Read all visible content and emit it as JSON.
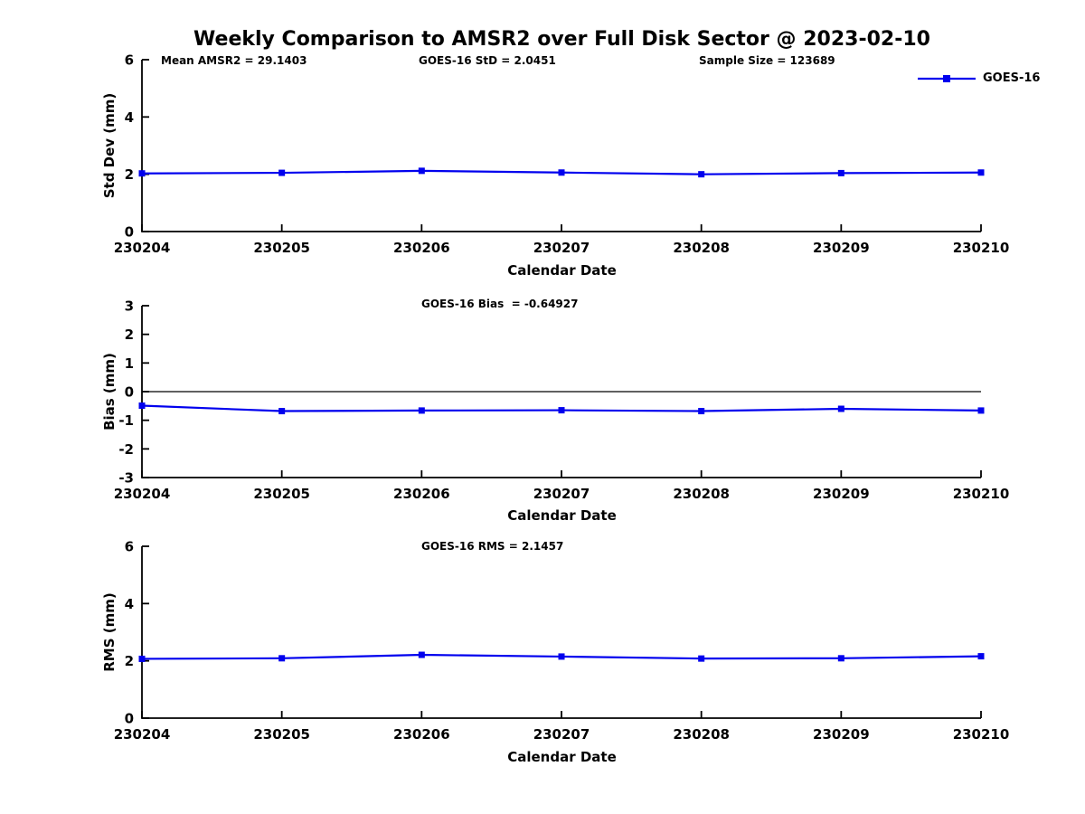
{
  "figure": {
    "title": "Weekly Comparison to AMSR2 over Full Disk Sector @ 2023-02-10",
    "line_color": "#0000EE",
    "axis_color": "#000000",
    "legend": {
      "label": "GOES-16"
    }
  },
  "chart_data": [
    {
      "type": "line",
      "name": "std-dev",
      "ylabel": "Std Dev (mm)",
      "xlabel": "Calendar Date",
      "categories": [
        "230204",
        "230205",
        "230206",
        "230207",
        "230208",
        "230209",
        "230210"
      ],
      "series": [
        {
          "name": "GOES-16",
          "marker": "square",
          "values": [
            2.03,
            2.05,
            2.12,
            2.06,
            2.0,
            2.04,
            2.06
          ]
        }
      ],
      "ylim": [
        0,
        6
      ],
      "yticks": [
        0,
        2,
        4,
        6
      ],
      "grid": false,
      "zero_line": false,
      "legend_position": "top-right",
      "annotations": [
        "Mean AMSR2 = 29.1403",
        "GOES-16 StD = 2.0451",
        "Sample Size = 123689"
      ]
    },
    {
      "type": "line",
      "name": "bias",
      "ylabel": "Bias (mm)",
      "xlabel": "Calendar Date",
      "categories": [
        "230204",
        "230205",
        "230206",
        "230207",
        "230208",
        "230209",
        "230210"
      ],
      "series": [
        {
          "name": "GOES-16",
          "marker": "square",
          "values": [
            -0.49,
            -0.68,
            -0.66,
            -0.65,
            -0.68,
            -0.6,
            -0.66
          ]
        }
      ],
      "ylim": [
        -3,
        3
      ],
      "yticks": [
        3,
        2,
        1,
        0,
        -1,
        -2,
        -3
      ],
      "grid": false,
      "zero_line": true,
      "annotations": [
        "GOES-16 Bias  = -0.64927"
      ]
    },
    {
      "type": "line",
      "name": "rms",
      "ylabel": "RMS (mm)",
      "xlabel": "Calendar Date",
      "categories": [
        "230204",
        "230205",
        "230206",
        "230207",
        "230208",
        "230209",
        "230210"
      ],
      "series": [
        {
          "name": "GOES-16",
          "marker": "square",
          "values": [
            2.07,
            2.09,
            2.21,
            2.15,
            2.08,
            2.09,
            2.16
          ]
        }
      ],
      "ylim": [
        0,
        6
      ],
      "yticks": [
        0,
        2,
        4,
        6
      ],
      "grid": false,
      "zero_line": false,
      "annotations": [
        "GOES-16 RMS = 2.1457"
      ]
    }
  ]
}
